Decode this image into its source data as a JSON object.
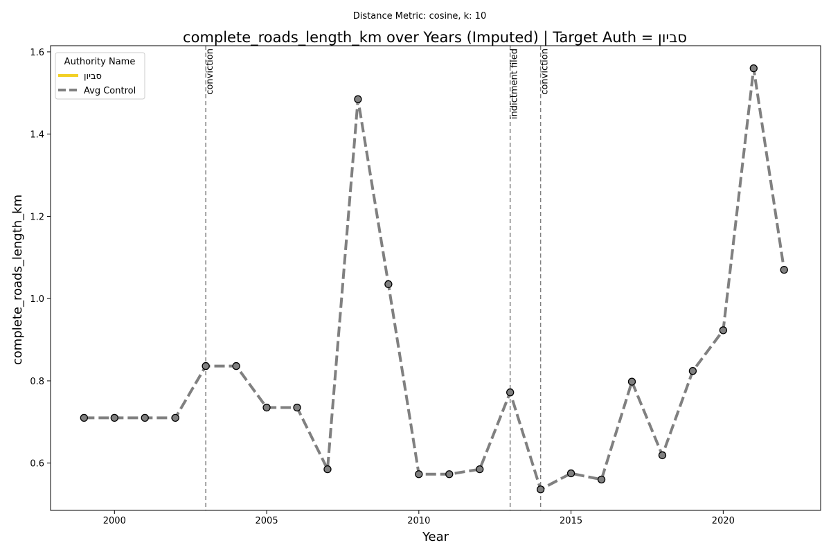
{
  "chart_data": {
    "type": "line",
    "suptitle": "Distance Metric: cosine, k: 10",
    "title": "complete_roads_length_km over Years (Imputed) | Target Auth = סביון",
    "xlabel": "Year",
    "ylabel": "complete_roads_length_km",
    "xlim": [
      1997.9,
      2023.2
    ],
    "ylim": [
      0.485,
      1.615
    ],
    "xticks": [
      2000,
      2005,
      2010,
      2015,
      2020
    ],
    "yticks": [
      0.6,
      0.8,
      1.0,
      1.2,
      1.4,
      1.6
    ],
    "ytick_labels": [
      "0.6",
      "0.8",
      "1.0",
      "1.2",
      "1.4",
      "1.6"
    ],
    "grid": false,
    "legend": {
      "title": "Authority Name",
      "placement": "top-left",
      "entries": [
        {
          "label": "סביון",
          "color": "#f2d024",
          "style": "solid"
        },
        {
          "label": "Avg Control",
          "color": "#808080",
          "style": "dashed"
        }
      ]
    },
    "series": [
      {
        "name": "Avg Control",
        "color": "#808080",
        "marker_fill": "#808080",
        "marker_edge": "#000000",
        "style": "dashed",
        "x": [
          1999,
          2000,
          2001,
          2002,
          2003,
          2004,
          2005,
          2006,
          2007,
          2008,
          2009,
          2010,
          2011,
          2012,
          2013,
          2014,
          2015,
          2016,
          2017,
          2018,
          2019,
          2020,
          2021,
          2022
        ],
        "y": [
          0.71,
          0.71,
          0.71,
          0.71,
          0.836,
          0.836,
          0.735,
          0.735,
          0.585,
          1.485,
          1.035,
          0.573,
          0.573,
          0.585,
          0.772,
          0.536,
          0.575,
          0.56,
          0.798,
          0.619,
          0.824,
          0.923,
          1.56,
          1.07
        ]
      }
    ],
    "events": [
      {
        "x": 2003,
        "label": "conviction"
      },
      {
        "x": 2013,
        "label": "indictment filed"
      },
      {
        "x": 2014,
        "label": "conviction"
      }
    ]
  }
}
